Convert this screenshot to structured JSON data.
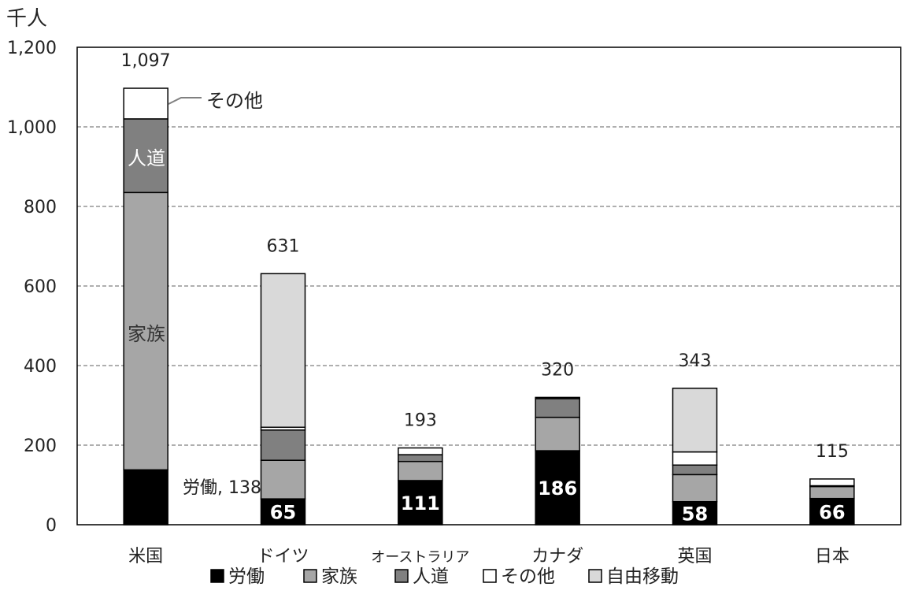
{
  "chart_data": {
    "type": "bar",
    "stacked": true,
    "y_unit": "千人",
    "ylim": [
      0,
      1200
    ],
    "yticks": [
      0,
      200,
      400,
      600,
      800,
      1000,
      1200
    ],
    "ytick_labels": [
      "0",
      "200",
      "400",
      "600",
      "800",
      "1,000",
      "1,200"
    ],
    "grid": "dashed horizontal",
    "categories": [
      "米国",
      "ドイツ",
      "オーストラリア",
      "カナダ",
      "英国",
      "日本"
    ],
    "totals": [
      1097,
      631,
      193,
      320,
      343,
      115
    ],
    "total_labels": [
      "1,097",
      "631",
      "193",
      "320",
      "343",
      "115"
    ],
    "series": [
      {
        "name": "労働",
        "color": "#000000",
        "values": [
          138,
          65,
          111,
          186,
          58,
          66
        ]
      },
      {
        "name": "家族",
        "color": "#a6a6a6",
        "values": [
          697,
          97,
          48,
          84,
          68,
          30
        ]
      },
      {
        "name": "人道",
        "color": "#808080",
        "values": [
          185,
          76,
          17,
          47,
          24,
          2
        ]
      },
      {
        "name": "その他",
        "color": "#ffffff",
        "values": [
          77,
          7,
          17,
          3,
          33,
          17
        ]
      },
      {
        "name": "自由移動",
        "color": "#d9d9d9",
        "values": [
          0,
          386,
          0,
          0,
          160,
          0
        ]
      }
    ],
    "value_labels": {
      "series": "労働",
      "shown": [
        "65",
        "111",
        "186",
        "58",
        "66"
      ]
    },
    "annotations": {
      "us_labor": "労働, 138",
      "us_family": "家族",
      "us_humanitarian": "人道",
      "us_other": "その他"
    },
    "legend_position": "bottom"
  }
}
